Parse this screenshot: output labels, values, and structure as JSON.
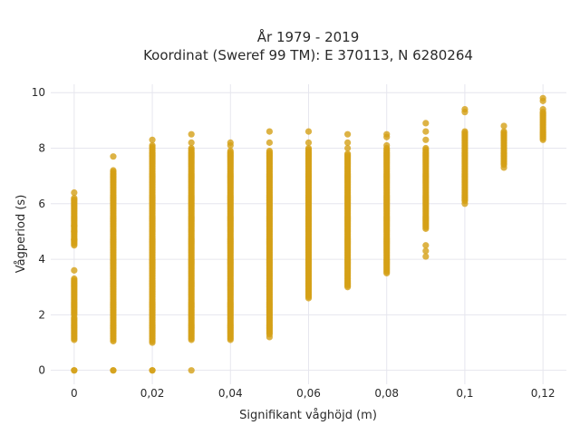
{
  "chart_data": {
    "type": "scatter",
    "title": "År 1979 - 2019",
    "subtitle": "Koordinat (Sweref 99 TM): E 370113, N 6280264",
    "xlabel": "Signifikant våghöjd (m)",
    "ylabel": "Vågperiod (s)",
    "xlim": [
      -0.006,
      0.126
    ],
    "ylim": [
      -0.5,
      10.3
    ],
    "grid": true,
    "marker_color": "#d4a017",
    "x_ticks": [
      {
        "value": 0,
        "label": "0"
      },
      {
        "value": 0.02,
        "label": "0,02"
      },
      {
        "value": 0.04,
        "label": "0,04"
      },
      {
        "value": 0.06,
        "label": "0,06"
      },
      {
        "value": 0.08,
        "label": "0,08"
      },
      {
        "value": 0.1,
        "label": "0,1"
      },
      {
        "value": 0.12,
        "label": "0,12"
      }
    ],
    "y_ticks": [
      {
        "value": 0,
        "label": "0"
      },
      {
        "value": 2,
        "label": "2"
      },
      {
        "value": 4,
        "label": "4"
      },
      {
        "value": 6,
        "label": "6"
      },
      {
        "value": 8,
        "label": "8"
      },
      {
        "value": 10,
        "label": "10"
      }
    ],
    "columns": [
      {
        "x": 0,
        "dense": [
          [
            1.1,
            1.9
          ],
          [
            2.0,
            3.3
          ],
          [
            4.5,
            6.2
          ]
        ],
        "points": [
          0,
          0,
          3.6,
          4.7,
          5.0,
          5.2,
          6.4
        ]
      },
      {
        "x": 0.01,
        "dense": [
          [
            1.05,
            7.2
          ]
        ],
        "points": [
          0,
          0,
          7.7
        ]
      },
      {
        "x": 0.02,
        "dense": [
          [
            1.0,
            8.1
          ]
        ],
        "points": [
          0,
          0,
          8.3
        ]
      },
      {
        "x": 0.03,
        "dense": [
          [
            1.1,
            8.0
          ]
        ],
        "points": [
          0,
          8.2,
          8.5
        ]
      },
      {
        "x": 0.04,
        "dense": [
          [
            1.1,
            7.9
          ]
        ],
        "points": [
          8.1,
          8.2
        ]
      },
      {
        "x": 0.05,
        "dense": [
          [
            1.3,
            7.9
          ]
        ],
        "points": [
          1.2,
          8.2,
          8.6
        ]
      },
      {
        "x": 0.06,
        "dense": [
          [
            2.6,
            8.0
          ]
        ],
        "points": [
          8.2,
          8.6
        ]
      },
      {
        "x": 0.07,
        "dense": [
          [
            3.0,
            7.8
          ]
        ],
        "points": [
          8.0,
          8.2,
          8.5
        ]
      },
      {
        "x": 0.08,
        "dense": [
          [
            3.5,
            8.0
          ]
        ],
        "points": [
          8.1,
          8.4,
          8.5
        ]
      },
      {
        "x": 0.09,
        "dense": [
          [
            5.1,
            8.0
          ]
        ],
        "points": [
          4.1,
          4.3,
          4.5,
          8.3,
          8.6,
          8.9
        ]
      },
      {
        "x": 0.1,
        "dense": [
          [
            6.1,
            8.6
          ]
        ],
        "points": [
          6.0,
          9.3,
          9.4
        ]
      },
      {
        "x": 0.11,
        "dense": [
          [
            7.4,
            8.6
          ]
        ],
        "points": [
          7.3,
          8.8
        ]
      },
      {
        "x": 0.12,
        "dense": [
          [
            8.3,
            9.3
          ]
        ],
        "points": [
          9.4,
          9.7,
          9.8
        ]
      }
    ]
  }
}
